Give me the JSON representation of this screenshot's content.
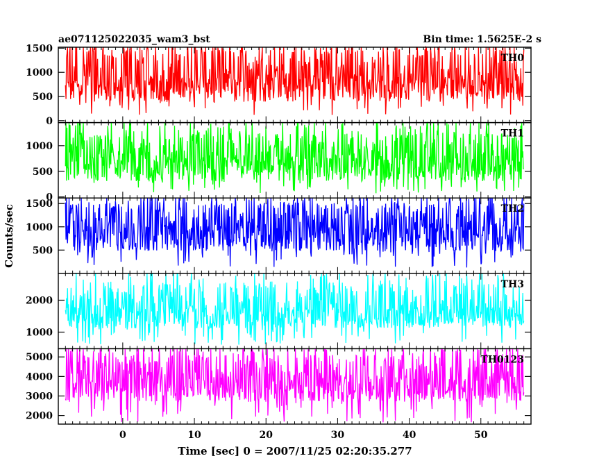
{
  "header": {
    "title": "ae071125022035_wam3_bst",
    "bin_time": "Bin time: 1.5625E-2 s"
  },
  "chart_data": [
    {
      "type": "line",
      "label": "TH0",
      "color": "#ff0000",
      "ylim": [
        -40,
        1520
      ],
      "yticks": [
        0,
        500,
        1000,
        1500
      ],
      "x_range": [
        -8,
        56
      ],
      "base": 650,
      "spread": 260,
      "spike": 950,
      "floor": 100,
      "grid": false
    },
    {
      "type": "line",
      "label": "TH1",
      "color": "#00ff00",
      "ylim": [
        -20,
        1450
      ],
      "yticks": [
        0,
        500,
        1000
      ],
      "x_range": [
        -8,
        56
      ],
      "base": 540,
      "spread": 230,
      "spike": 800,
      "floor": 60,
      "grid": false
    },
    {
      "type": "line",
      "label": "TH2",
      "color": "#0000ff",
      "ylim": [
        0,
        1620
      ],
      "yticks": [
        500,
        1000,
        1500
      ],
      "x_range": [
        -8,
        56
      ],
      "base": 760,
      "spread": 280,
      "spike": 820,
      "floor": 120,
      "grid": false
    },
    {
      "type": "line",
      "label": "TH3",
      "color": "#00ffff",
      "ylim": [
        480,
        2840
      ],
      "yticks": [
        1000,
        2000
      ],
      "x_range": [
        -8,
        56
      ],
      "base": 1450,
      "spread": 330,
      "spike": 1300,
      "floor": 600,
      "grid": false
    },
    {
      "type": "line",
      "label": "TH0123",
      "color": "#ff00ff",
      "ylim": [
        1560,
        5420
      ],
      "yticks": [
        2000,
        3000,
        4000,
        5000
      ],
      "x_range": [
        -8,
        56
      ],
      "base": 3300,
      "spread": 600,
      "spike": 2000,
      "floor": 1650,
      "grid": false
    }
  ],
  "axes": {
    "xlabel": "Time [sec] 0 = 2007/11/25 02:20:35.277",
    "ylabel": "Counts/sec",
    "xlim": [
      -9,
      57
    ],
    "xticks": [
      0,
      10,
      20,
      30,
      40,
      50
    ]
  }
}
